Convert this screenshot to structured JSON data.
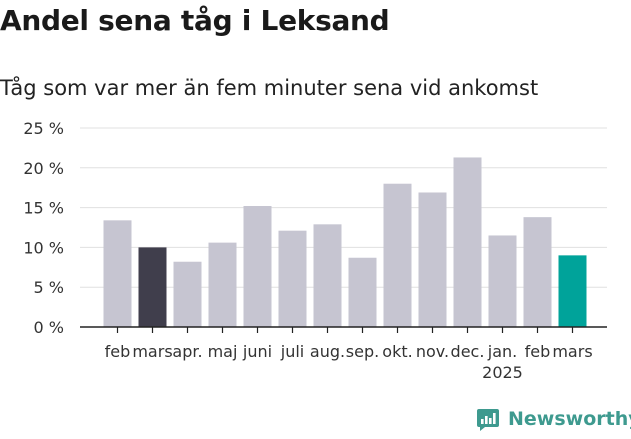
{
  "title": "Andel sena tåg i Leksand",
  "subtitle": "Tåg som var mer än fem minuter sena vid ankomst",
  "brand": "Newsworthy",
  "colors": {
    "default_bar": "#c6c5d1",
    "prev_year_bar": "#403e4c",
    "current_bar": "#00a39a",
    "grid": "#e0e0e0",
    "axis": "#222222",
    "brand": "#3e9a8f"
  },
  "chart_data": {
    "type": "bar",
    "categories": [
      "feb",
      "mars",
      "apr.",
      "maj",
      "juni",
      "juli",
      "aug.",
      "sep.",
      "okt.",
      "nov.",
      "dec.",
      "jan.",
      "feb",
      "mars"
    ],
    "year_labels": [
      "",
      "",
      "",
      "",
      "",
      "",
      "",
      "",
      "",
      "",
      "",
      "2025",
      "",
      ""
    ],
    "values": [
      13.4,
      10.0,
      8.2,
      10.6,
      15.2,
      12.1,
      12.9,
      8.7,
      18.0,
      16.9,
      21.3,
      11.5,
      13.8,
      9.0
    ],
    "highlight": [
      "default",
      "prev_year",
      "default",
      "default",
      "default",
      "default",
      "default",
      "default",
      "default",
      "default",
      "default",
      "default",
      "default",
      "current"
    ],
    "yticks": [
      0,
      5,
      10,
      15,
      20,
      25
    ],
    "ytick_labels": [
      "0 %",
      "5 %",
      "10 %",
      "15 %",
      "20 %",
      "25 %"
    ],
    "ylim": [
      0,
      25
    ],
    "grid": true,
    "legend": "none"
  }
}
